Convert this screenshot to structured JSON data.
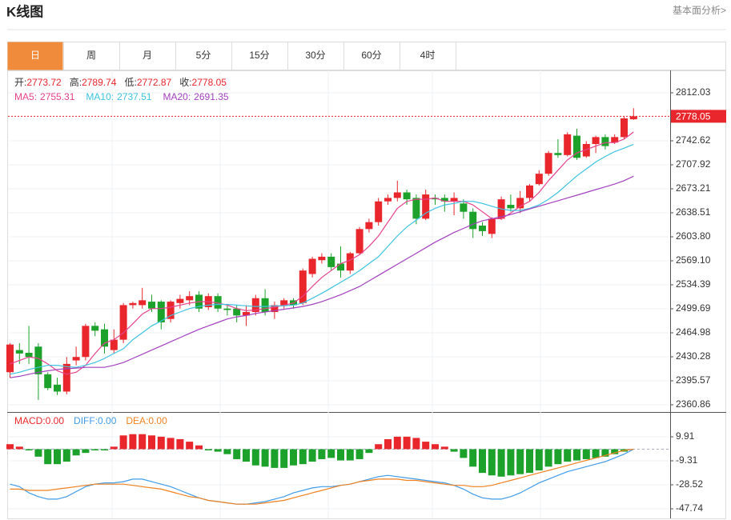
{
  "header": {
    "title": "K线图",
    "link": "基本面分析>"
  },
  "tabs": [
    "日",
    "周",
    "月",
    "5分",
    "15分",
    "30分",
    "60分",
    "4时"
  ],
  "chart_data": {
    "type": "candlestick",
    "info_labels": [
      "开:",
      "高:",
      "低:",
      "收:"
    ],
    "ohlc": {
      "open": [
        2408,
        2440,
        2436,
        2445,
        2405,
        2390,
        2380,
        2425,
        2430,
        2475,
        2470,
        2440,
        2455,
        2505,
        2505,
        2510,
        2510,
        2485,
        2508,
        2512,
        2520,
        2502,
        2518,
        2500,
        2500,
        2490,
        2495,
        2515,
        2495,
        2505,
        2512,
        2508,
        2550,
        2570,
        2575,
        2565,
        2555,
        2580,
        2615,
        2625,
        2655,
        2660,
        2668,
        2660,
        2630,
        2660,
        2660,
        2655,
        2652,
        2640,
        2620,
        2608,
        2630,
        2650,
        2645,
        2660,
        2680,
        2695,
        2725,
        2722,
        2750,
        2720,
        2738,
        2748,
        2740,
        2748,
        2773.72
      ],
      "high": [
        2450,
        2450,
        2475,
        2450,
        2408,
        2400,
        2430,
        2445,
        2478,
        2480,
        2478,
        2470,
        2508,
        2510,
        2530,
        2520,
        2512,
        2512,
        2520,
        2525,
        2525,
        2522,
        2522,
        2505,
        2505,
        2505,
        2520,
        2528,
        2510,
        2515,
        2515,
        2558,
        2575,
        2580,
        2580,
        2590,
        2582,
        2618,
        2630,
        2660,
        2665,
        2685,
        2672,
        2665,
        2672,
        2665,
        2665,
        2668,
        2658,
        2645,
        2625,
        2632,
        2662,
        2665,
        2670,
        2680,
        2700,
        2728,
        2745,
        2755,
        2760,
        2742,
        2750,
        2752,
        2752,
        2778,
        2789.74
      ],
      "low": [
        2400,
        2420,
        2420,
        2368,
        2382,
        2375,
        2376,
        2418,
        2425,
        2460,
        2435,
        2435,
        2450,
        2500,
        2500,
        2495,
        2470,
        2480,
        2500,
        2505,
        2495,
        2498,
        2495,
        2490,
        2480,
        2475,
        2490,
        2490,
        2485,
        2500,
        2500,
        2505,
        2545,
        2565,
        2555,
        2545,
        2550,
        2578,
        2610,
        2620,
        2650,
        2655,
        2650,
        2622,
        2628,
        2650,
        2640,
        2635,
        2630,
        2602,
        2605,
        2602,
        2628,
        2640,
        2638,
        2655,
        2678,
        2692,
        2718,
        2720,
        2715,
        2718,
        2725,
        2730,
        2738,
        2745,
        2772.87
      ],
      "close": [
        2448,
        2435,
        2430,
        2405,
        2385,
        2380,
        2420,
        2430,
        2475,
        2468,
        2445,
        2455,
        2505,
        2508,
        2512,
        2500,
        2480,
        2510,
        2514,
        2518,
        2500,
        2518,
        2500,
        2498,
        2490,
        2495,
        2515,
        2495,
        2505,
        2512,
        2505,
        2555,
        2572,
        2575,
        2560,
        2555,
        2580,
        2615,
        2625,
        2655,
        2660,
        2668,
        2658,
        2630,
        2665,
        2658,
        2655,
        2660,
        2640,
        2615,
        2612,
        2630,
        2658,
        2645,
        2660,
        2678,
        2695,
        2725,
        2722,
        2752,
        2718,
        2738,
        2748,
        2735,
        2748,
        2775,
        2778.05
      ]
    },
    "up_color": "#e8262b",
    "down_color": "#1ca22b",
    "series": [
      {
        "name": "MA5:",
        "color": "#e6418c",
        "values": [
          2420,
          2425,
          2430,
          2428,
          2420,
          2410,
          2405,
          2408,
          2418,
          2435,
          2450,
          2455,
          2465,
          2478,
          2492,
          2500,
          2500,
          2502,
          2505,
          2508,
          2510,
          2510,
          2508,
          2505,
          2500,
          2497,
          2498,
          2500,
          2502,
          2505,
          2508,
          2518,
          2532,
          2545,
          2555,
          2565,
          2570,
          2578,
          2590,
          2605,
          2625,
          2645,
          2655,
          2658,
          2658,
          2660,
          2655,
          2655,
          2655,
          2650,
          2640,
          2630,
          2630,
          2638,
          2648,
          2655,
          2668,
          2685,
          2700,
          2715,
          2725,
          2730,
          2735,
          2740,
          2740,
          2745,
          2755.31
        ]
      },
      {
        "name": "MA10:",
        "color": "#3ec3e0",
        "values": [
          2405,
          2408,
          2412,
          2415,
          2418,
          2418,
          2416,
          2415,
          2418,
          2422,
          2428,
          2435,
          2442,
          2455,
          2465,
          2475,
          2482,
          2490,
          2495,
          2500,
          2503,
          2505,
          2506,
          2506,
          2505,
          2504,
          2503,
          2503,
          2504,
          2504,
          2505,
          2508,
          2515,
          2522,
          2530,
          2538,
          2546,
          2555,
          2565,
          2575,
          2590,
          2605,
          2618,
          2628,
          2638,
          2645,
          2650,
          2652,
          2655,
          2655,
          2652,
          2648,
          2644,
          2642,
          2642,
          2645,
          2650,
          2658,
          2668,
          2680,
          2692,
          2702,
          2712,
          2720,
          2727,
          2732,
          2737.51
        ]
      },
      {
        "name": "MA20:",
        "color": "#a341bf",
        "values": [
          2400,
          2402,
          2405,
          2408,
          2410,
          2412,
          2413,
          2414,
          2415,
          2415,
          2415,
          2418,
          2422,
          2428,
          2434,
          2440,
          2446,
          2452,
          2458,
          2464,
          2470,
          2475,
          2480,
          2485,
          2488,
          2490,
          2493,
          2495,
          2497,
          2499,
          2501,
          2503,
          2506,
          2510,
          2515,
          2520,
          2526,
          2532,
          2540,
          2548,
          2556,
          2564,
          2572,
          2580,
          2588,
          2596,
          2603,
          2610,
          2616,
          2622,
          2627,
          2630,
          2633,
          2636,
          2640,
          2644,
          2648,
          2652,
          2656,
          2660,
          2664,
          2668,
          2672,
          2676,
          2680,
          2685,
          2691.35
        ]
      }
    ],
    "ylim": [
      2350.45,
      2844.42
    ],
    "yticks": [
      2812.03,
      2742.62,
      2707.92,
      2673.21,
      2638.51,
      {
        "value": 2603.8,
        "label": "2603.80"
      },
      {
        "value": 2569.1,
        "label": "2569.10"
      },
      2534.39,
      2499.69,
      2464.98,
      2430.28,
      2395.57,
      2360.86
    ],
    "grid": true,
    "macd": {
      "ylim": [
        -55.43,
        28.48
      ],
      "yticks": [
        9.91,
        -9.31,
        -28.52,
        -47.74
      ],
      "bars": {
        "name": "MACD:",
        "color": "#e8262b",
        "down_color": "#1ca22b",
        "last_label": "0.00",
        "values": [
          4,
          2,
          -1,
          -6,
          -12,
          -12,
          -10,
          -5,
          -3,
          -1,
          -1,
          2,
          11,
          12,
          12,
          11,
          10,
          9,
          8,
          6,
          3,
          -1,
          -2,
          -4,
          -8,
          -10,
          -13,
          -14,
          -15,
          -15,
          -13,
          -12,
          -10,
          -8,
          -7,
          -9,
          -9,
          -8,
          -3,
          4,
          8,
          10,
          10,
          9,
          6,
          4,
          2,
          -2,
          -7,
          -14,
          -19,
          -21,
          -22,
          -21,
          -20,
          -19,
          -17,
          -14,
          -12,
          -10,
          -9,
          -8,
          -7,
          -6,
          -4,
          -2,
          0
        ]
      },
      "series": [
        {
          "name": "DIFF:",
          "color": "#3f9be8",
          "last_label": "0.00",
          "values": [
            -28,
            -30,
            -35,
            -38,
            -40,
            -40,
            -38,
            -34,
            -30,
            -28,
            -27,
            -27,
            -26,
            -24,
            -24,
            -26,
            -28,
            -30,
            -33,
            -36,
            -39,
            -41,
            -42,
            -43,
            -44,
            -44,
            -43,
            -42,
            -40,
            -38,
            -35,
            -33,
            -31,
            -30,
            -30,
            -29,
            -28,
            -26,
            -24,
            -22,
            -21,
            -22,
            -23,
            -24,
            -25,
            -26,
            -27,
            -29,
            -32,
            -36,
            -39,
            -40,
            -40,
            -38,
            -35,
            -31,
            -27,
            -24,
            -21,
            -18,
            -16,
            -14,
            -12,
            -10,
            -7,
            -4,
            0
          ]
        },
        {
          "name": "DEA:",
          "color": "#f0811f",
          "last_label": "0.00",
          "values": [
            -32,
            -32,
            -33,
            -33,
            -33,
            -32,
            -31,
            -30,
            -29,
            -28,
            -28,
            -28,
            -28,
            -29,
            -30,
            -31,
            -32,
            -34,
            -36,
            -38,
            -39,
            -41,
            -42,
            -43,
            -44,
            -44,
            -44,
            -43,
            -42,
            -41,
            -39,
            -37,
            -35,
            -33,
            -31,
            -29,
            -28,
            -26,
            -25,
            -24,
            -24,
            -24,
            -25,
            -25,
            -26,
            -27,
            -28,
            -29,
            -29,
            -30,
            -30,
            -29,
            -27,
            -25,
            -23,
            -21,
            -19,
            -17,
            -15,
            -13,
            -11,
            -9,
            -7,
            -5,
            -3,
            -1,
            0
          ]
        }
      ]
    }
  }
}
